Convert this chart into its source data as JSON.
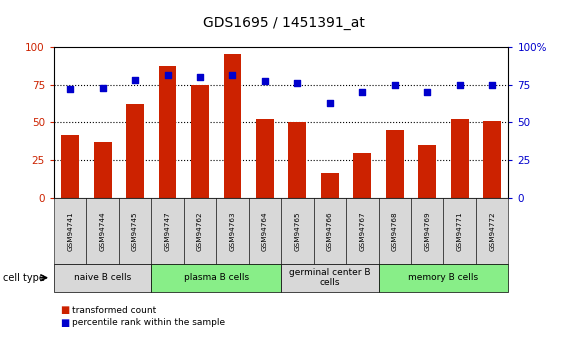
{
  "title": "GDS1695 / 1451391_at",
  "samples": [
    "GSM94741",
    "GSM94744",
    "GSM94745",
    "GSM94747",
    "GSM94762",
    "GSM94763",
    "GSM94764",
    "GSM94765",
    "GSM94766",
    "GSM94767",
    "GSM94768",
    "GSM94769",
    "GSM94771",
    "GSM94772"
  ],
  "bar_values": [
    42,
    37,
    62,
    87,
    75,
    95,
    52,
    50,
    17,
    30,
    45,
    35,
    52,
    51
  ],
  "dot_values": [
    72,
    73,
    78,
    81,
    80,
    81,
    77,
    76,
    63,
    70,
    75,
    70,
    75,
    75
  ],
  "bar_color": "#cc2200",
  "dot_color": "#0000cc",
  "ylim": [
    0,
    100
  ],
  "yticks": [
    0,
    25,
    50,
    75,
    100
  ],
  "ytick_labels_left": [
    "0",
    "25",
    "50",
    "75",
    "100"
  ],
  "ytick_labels_right": [
    "0",
    "25",
    "50",
    "75",
    "100%"
  ],
  "cell_type_label": "cell type",
  "groups": [
    {
      "label": "naive B cells",
      "start": 0,
      "end": 2,
      "color": "#d8d8d8"
    },
    {
      "label": "plasma B cells",
      "start": 3,
      "end": 6,
      "color": "#88ee88"
    },
    {
      "label": "germinal center B\ncells",
      "start": 7,
      "end": 9,
      "color": "#d8d8d8"
    },
    {
      "label": "memory B cells",
      "start": 10,
      "end": 13,
      "color": "#88ee88"
    }
  ],
  "legend_bar_label": "transformed count",
  "legend_dot_label": "percentile rank within the sample",
  "plot_bg": "#ffffff",
  "tick_color_left": "#cc2200",
  "tick_color_right": "#0000cc",
  "sample_bg": "#d8d8d8"
}
